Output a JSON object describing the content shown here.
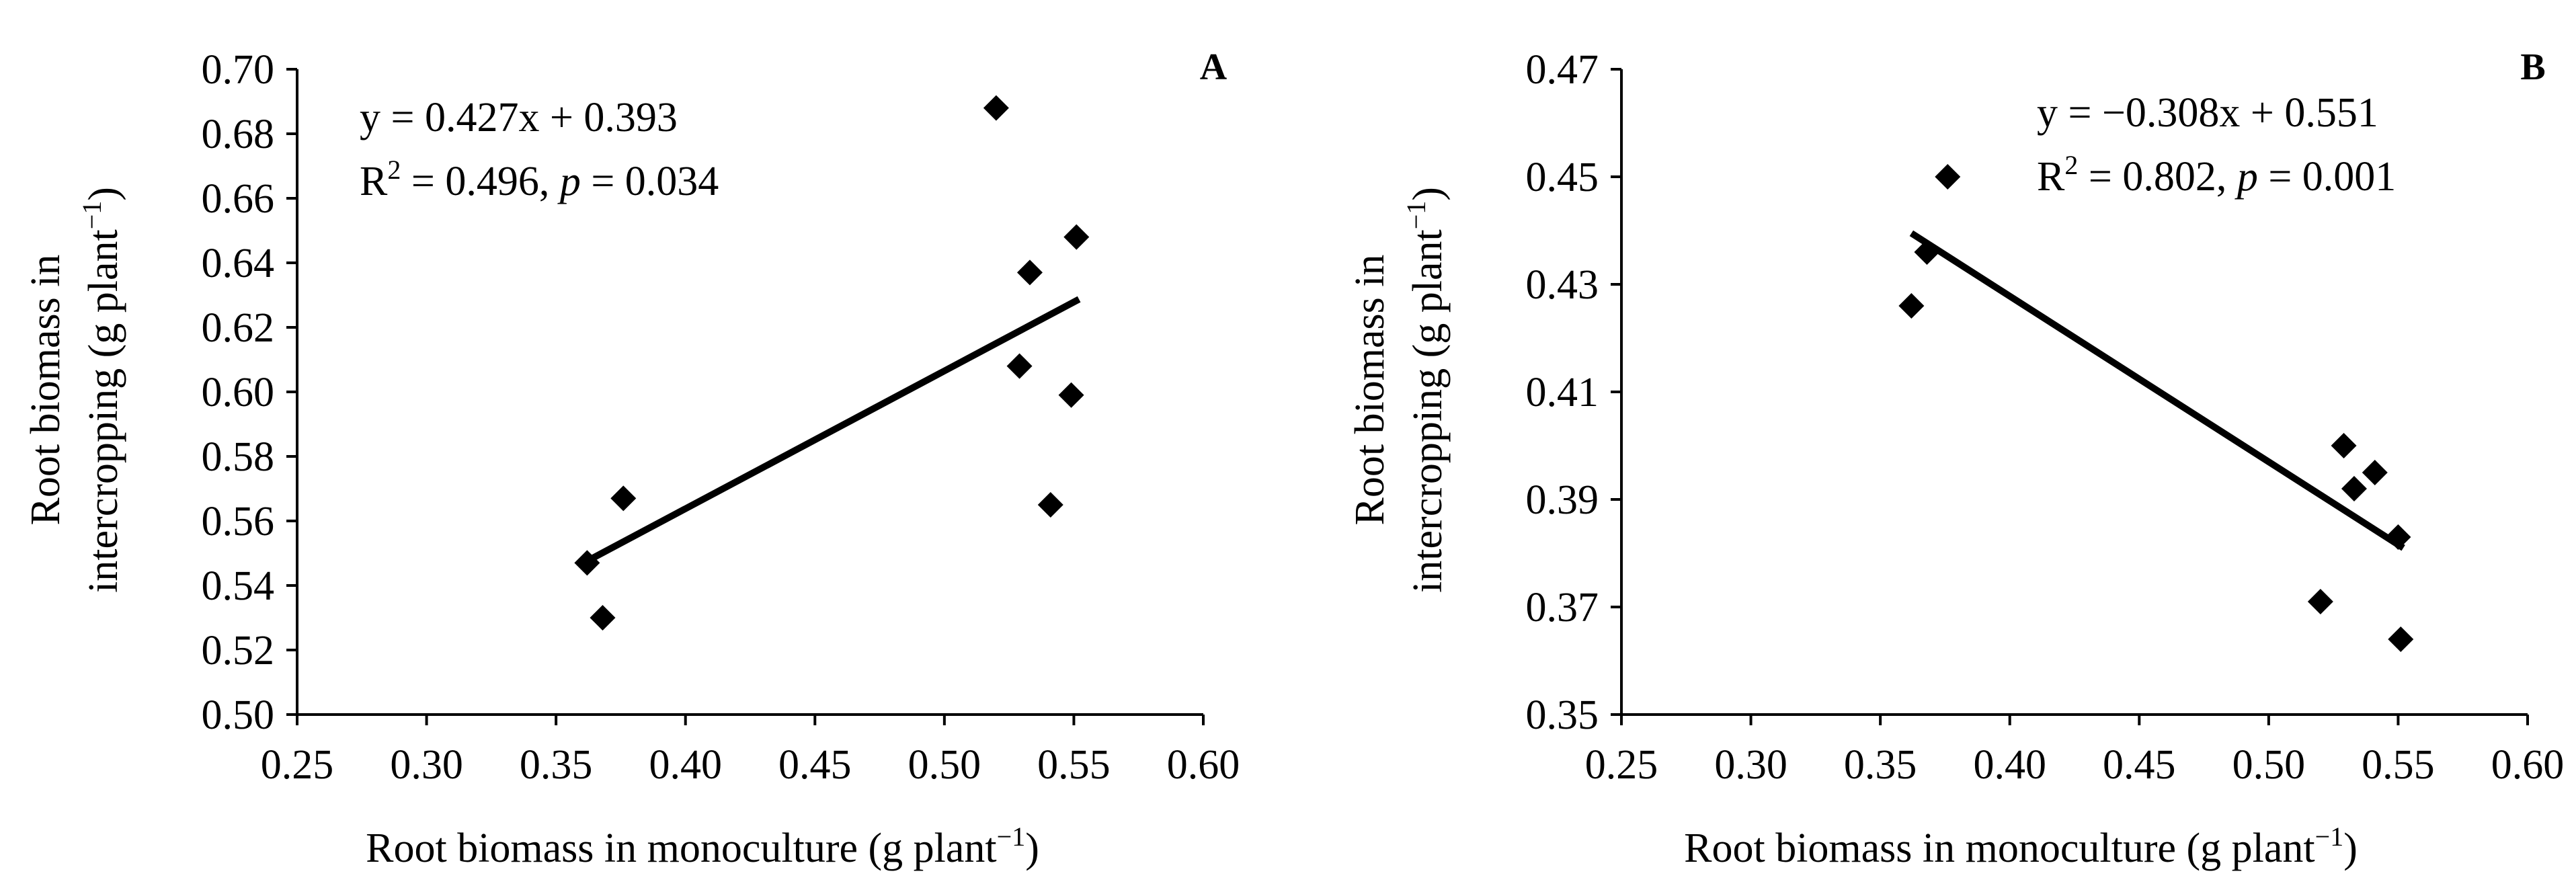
{
  "chart_data": [
    {
      "type": "scatter",
      "panel_label": "A",
      "equation": "y = 0.427x + 0.393",
      "r2_prefix": "R",
      "r2_sup": "2",
      "r2_rest": " = 0.496, ",
      "p_symbol": "p",
      "p_rest": " = 0.034",
      "xlabel_main": "Root biomass in monoculture (g plant",
      "xlabel_sup": "−1",
      "xlabel_end": ")",
      "ylabel_line1": "Root biomass in",
      "ylabel_line2_main": "intercropping (g plant",
      "ylabel_line2_sup": "−1",
      "ylabel_line2_end": ")",
      "xlim": [
        0.25,
        0.6
      ],
      "ylim": [
        0.5,
        0.7
      ],
      "xticks": [
        "0.25",
        "0.30",
        "0.35",
        "0.40",
        "0.45",
        "0.50",
        "0.55",
        "0.60"
      ],
      "yticks": [
        "0.50",
        "0.52",
        "0.54",
        "0.56",
        "0.58",
        "0.60",
        "0.62",
        "0.64",
        "0.66",
        "0.68",
        "0.70"
      ],
      "points": [
        {
          "x": 0.362,
          "y": 0.547
        },
        {
          "x": 0.368,
          "y": 0.53
        },
        {
          "x": 0.376,
          "y": 0.567
        },
        {
          "x": 0.52,
          "y": 0.688
        },
        {
          "x": 0.529,
          "y": 0.608
        },
        {
          "x": 0.533,
          "y": 0.637
        },
        {
          "x": 0.541,
          "y": 0.565
        },
        {
          "x": 0.549,
          "y": 0.599
        },
        {
          "x": 0.551,
          "y": 0.648
        }
      ],
      "trendline": {
        "slope": 0.427,
        "intercept": 0.393,
        "x_range": [
          0.362,
          0.552
        ]
      }
    },
    {
      "type": "scatter",
      "panel_label": "B",
      "equation": "y = −0.308x + 0.551",
      "r2_prefix": "R",
      "r2_sup": "2",
      "r2_rest": " = 0.802, ",
      "p_symbol": "p",
      "p_rest": " = 0.001",
      "xlabel_main": "Root biomass in monoculture (g plant",
      "xlabel_sup": "−1",
      "xlabel_end": ")",
      "ylabel_line1": "Root biomass in",
      "ylabel_line2_main": "intercropping (g plant",
      "ylabel_line2_sup": "−1",
      "ylabel_line2_end": ")",
      "xlim": [
        0.25,
        0.6
      ],
      "ylim": [
        0.35,
        0.47
      ],
      "xticks": [
        "0.25",
        "0.30",
        "0.35",
        "0.40",
        "0.45",
        "0.50",
        "0.55",
        "0.60"
      ],
      "yticks": [
        "0.35",
        "0.37",
        "0.39",
        "0.41",
        "0.43",
        "0.45",
        "0.47"
      ],
      "points": [
        {
          "x": 0.362,
          "y": 0.426
        },
        {
          "x": 0.368,
          "y": 0.436
        },
        {
          "x": 0.376,
          "y": 0.45
        },
        {
          "x": 0.52,
          "y": 0.371
        },
        {
          "x": 0.529,
          "y": 0.4
        },
        {
          "x": 0.533,
          "y": 0.392
        },
        {
          "x": 0.541,
          "y": 0.395
        },
        {
          "x": 0.55,
          "y": 0.383
        },
        {
          "x": 0.551,
          "y": 0.364
        }
      ],
      "trendline": {
        "slope": -0.308,
        "intercept": 0.551,
        "x_range": [
          0.362,
          0.552
        ]
      }
    }
  ]
}
